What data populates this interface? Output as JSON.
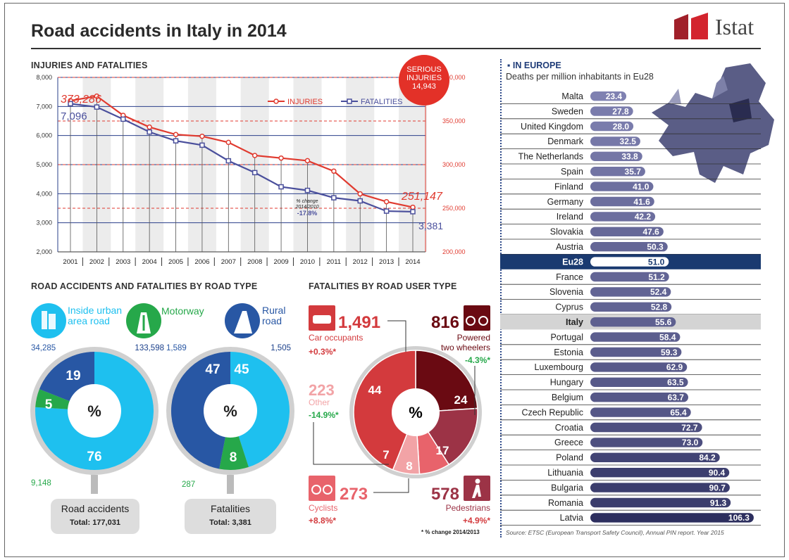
{
  "title": "Road accidents in Italy in 2014",
  "logo": "Istat",
  "sections": {
    "injuries": "INJURIES AND FATALITIES",
    "road_type": "ROAD ACCIDENTS AND FATALITIES BY ROAD TYPE",
    "user_type": "FATALITIES BY ROAD USER TYPE",
    "europe": "IN EUROPE",
    "europe_sub": "Deaths per million inhabitants in Eu28"
  },
  "serious": {
    "line1": "SERIOUS",
    "line2": "INJURIES",
    "value": "14,943"
  },
  "road_types": {
    "urban": "Inside urban area road",
    "motorway": "Motorway",
    "rural": "Rural road"
  },
  "accidents_pie": {
    "label": "Road accidents",
    "total": "Total: 177,031",
    "center": "%",
    "slices": [
      {
        "name": "urban",
        "pct": "76",
        "count": "133,598",
        "value": 76,
        "color": "#1ec0ef"
      },
      {
        "name": "motorway",
        "pct": "5",
        "count": "9,148",
        "value": 5,
        "color": "#26a84a"
      },
      {
        "name": "rural",
        "pct": "19",
        "count": "34,285",
        "value": 19,
        "color": "#2857a4"
      }
    ]
  },
  "fatalities_pie": {
    "label": "Fatalities",
    "total": "Total: 3,381",
    "center": "%",
    "slices": [
      {
        "name": "urban",
        "pct": "45",
        "count": "1,505",
        "value": 45,
        "color": "#1ec0ef"
      },
      {
        "name": "motorway",
        "pct": "8",
        "count": "287",
        "value": 8,
        "color": "#26a84a"
      },
      {
        "name": "rural",
        "pct": "47",
        "count": "1,589",
        "value": 47,
        "color": "#2857a4"
      }
    ]
  },
  "users_pie": {
    "center": "%",
    "note": "* % change 2014/2013",
    "slices": [
      {
        "name": "Powered two wheelers",
        "pct": "24",
        "count": "816",
        "change": "-4.3%*",
        "value": 24,
        "color": "#6a0a12"
      },
      {
        "name": "Pedestrians",
        "pct": "17",
        "count": "578",
        "change": "+4.9%*",
        "value": 17,
        "color": "#9c3346"
      },
      {
        "name": "Cyclists",
        "pct": "8",
        "count": "273",
        "change": "+8.8%*",
        "value": 8,
        "color": "#e8636b"
      },
      {
        "name": "Other",
        "pct": "7",
        "count": "223",
        "change": "-14.9%*",
        "value": 7,
        "color": "#f2a3a6"
      },
      {
        "name": "Car occupants",
        "pct": "44",
        "count": "1,491",
        "change": "+0.3%*",
        "value": 44,
        "color": "#d33a3d"
      }
    ],
    "labels": {
      "car": "Car occupants",
      "powered1": "Powered",
      "powered2": "two wheelers",
      "other": "Other",
      "cyclists": "Cyclists",
      "pedestrians": "Pedestrians"
    }
  },
  "chart_data": [
    {
      "type": "line",
      "title": "INJURIES AND FATALITIES",
      "x": [
        "2001",
        "2002",
        "2003",
        "2004",
        "2005",
        "2006",
        "2007",
        "2008",
        "2009",
        "2010",
        "2011",
        "2012",
        "2013",
        "2014"
      ],
      "series": [
        {
          "name": "INJURIES",
          "axis": "right",
          "color": "#e03a2f",
          "values": [
            373286,
            378500,
            356500,
            343000,
            334500,
            332500,
            325500,
            310500,
            307500,
            304500,
            292500,
            266500,
            257500,
            251147
          ]
        },
        {
          "name": "FATALITIES",
          "axis": "left",
          "color": "#4a4f9c",
          "values": [
            7096,
            6980,
            6563,
            6122,
            5818,
            5669,
            5131,
            4725,
            4237,
            4114,
            3860,
            3753,
            3401,
            3381
          ]
        }
      ],
      "ylim_left": [
        2000,
        8000
      ],
      "ylim_right": [
        200000,
        400000
      ],
      "yticks_left": [
        "2,000",
        "3,000",
        "4,000",
        "5,000",
        "6,000",
        "7,000",
        "8,000"
      ],
      "yticks_right": [
        "200,000",
        "250,000",
        "300,000",
        "350,000",
        "400,000"
      ],
      "annotations": {
        "first_injuries": "373,286",
        "first_fatalities": "7,096",
        "last_injuries": "251,147",
        "last_fatalities": "3,381",
        "change_label1": "% change",
        "change_label2": "2014/2010",
        "change_value": "-17.8%"
      }
    },
    {
      "type": "bar",
      "title": "Deaths per million inhabitants in Eu28",
      "categories": [
        "Malta",
        "Sweden",
        "United Kingdom",
        "Denmark",
        "The Netherlands",
        "Spain",
        "Finland",
        "Germany",
        "Ireland",
        "Slovakia",
        "Austria",
        "Eu28",
        "France",
        "Slovenia",
        "Cyprus",
        "Italy",
        "Portugal",
        "Estonia",
        "Luxembourg",
        "Hungary",
        "Belgium",
        "Czech Republic",
        "Croatia",
        "Greece",
        "Poland",
        "Lithuania",
        "Bulgaria",
        "Romania",
        "Latvia"
      ],
      "values": [
        23.4,
        27.8,
        28.0,
        32.5,
        33.8,
        35.7,
        41.0,
        41.6,
        42.2,
        47.6,
        50.3,
        51.0,
        51.2,
        52.4,
        52.8,
        55.6,
        58.4,
        59.3,
        62.9,
        63.5,
        63.7,
        65.4,
        72.7,
        73.0,
        84.2,
        90.4,
        90.7,
        91.3,
        106.3
      ],
      "labels": [
        "23.4",
        "27.8",
        "28.0",
        "32.5",
        "33.8",
        "35.7",
        "41.0",
        "41.6",
        "42.2",
        "47.6",
        "50.3",
        "51.0",
        "51.2",
        "52.4",
        "52.8",
        "55.6",
        "58.4",
        "59.3",
        "62.9",
        "63.5",
        "63.7",
        "65.4",
        "72.7",
        "73.0",
        "84.2",
        "90.4",
        "90.7",
        "91.3",
        "106.3"
      ],
      "highlight": {
        "Eu28": "#1a3a70",
        "Italy": "#d4d4d4"
      }
    }
  ],
  "source": "Source: ETSC (European Transport Safety Council), Annual PIN report. Year 2015"
}
